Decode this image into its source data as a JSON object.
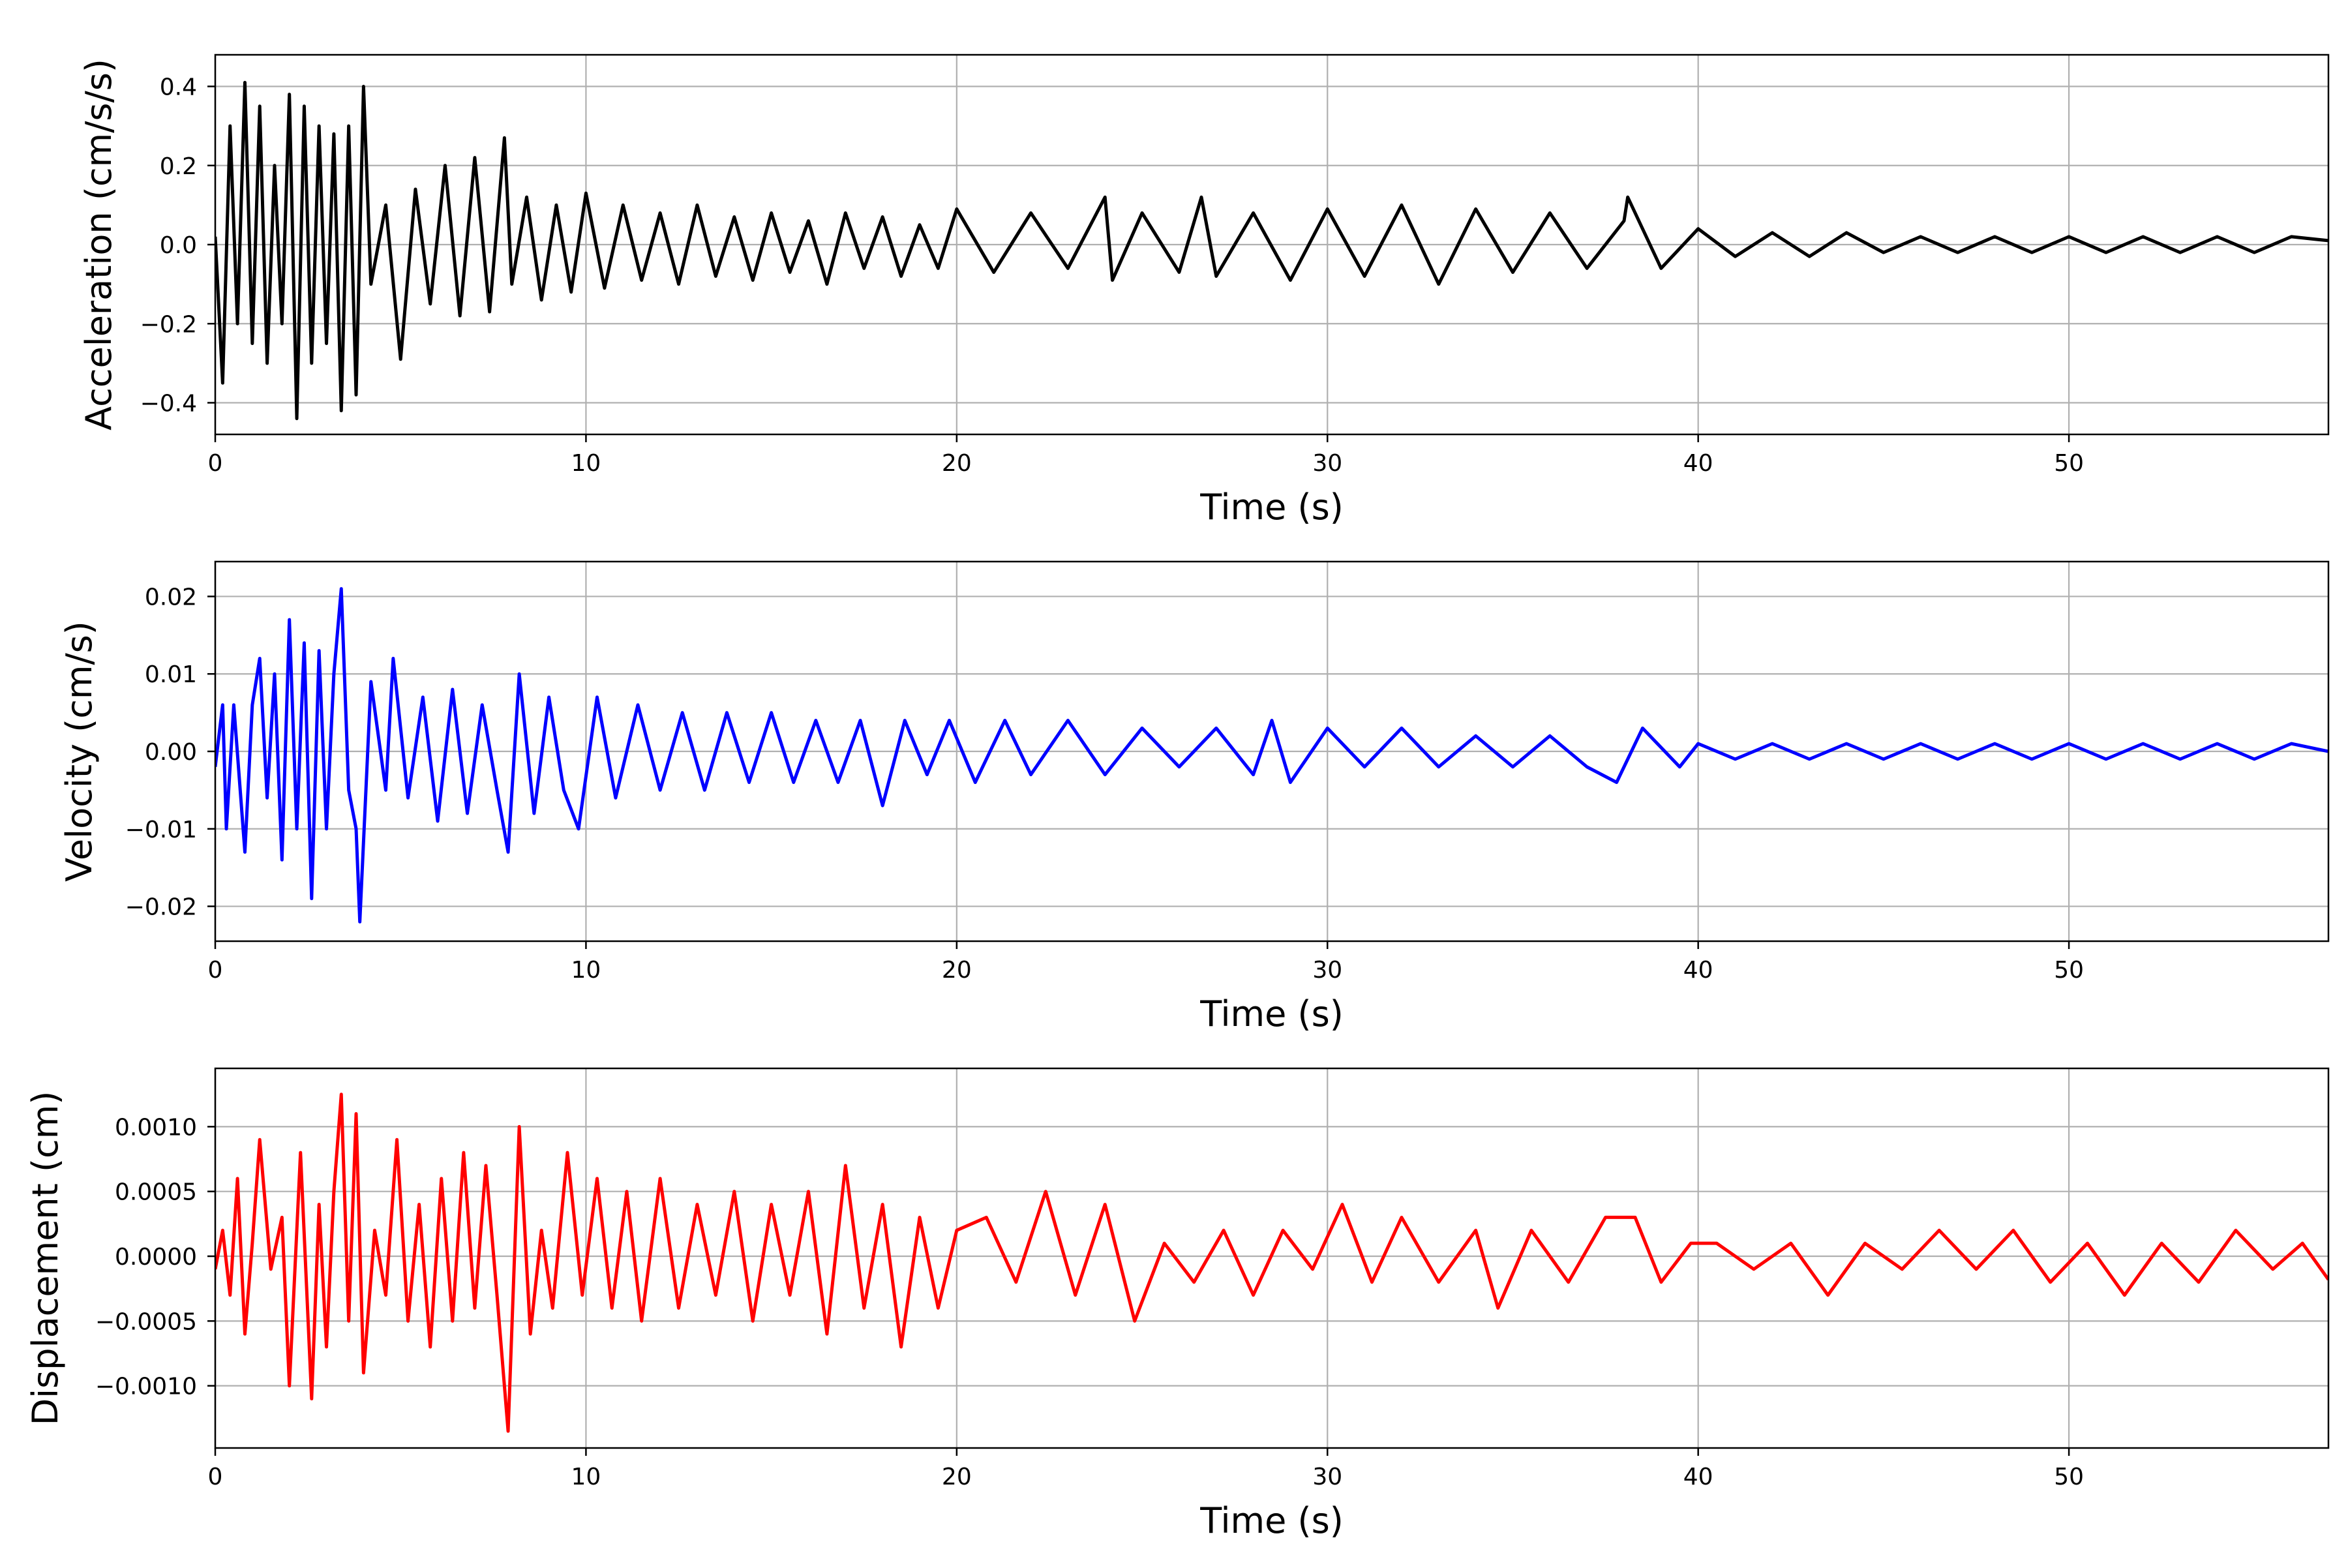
{
  "figure": {
    "background": "#ffffff",
    "grid_color": "#b0b0b0"
  },
  "chart_data": [
    {
      "type": "line",
      "title": "",
      "xlabel": "Time (s)",
      "ylabel": "Acceleration (cm/s/s)",
      "xlim": [
        0,
        57
      ],
      "ylim": [
        -0.48,
        0.48
      ],
      "xticks": [
        0,
        10,
        20,
        30,
        40,
        50
      ],
      "xtick_labels": [
        "0",
        "10",
        "20",
        "30",
        "40",
        "50"
      ],
      "yticks": [
        -0.4,
        -0.2,
        0.0,
        0.2,
        0.4
      ],
      "ytick_labels": [
        "−0.4",
        "−0.2",
        "0.0",
        "0.2",
        "0.4"
      ],
      "grid": true,
      "series": [
        {
          "color": "#000000",
          "x": [
            0,
            0.2,
            0.4,
            0.6,
            0.8,
            1.0,
            1.2,
            1.4,
            1.6,
            1.8,
            2.0,
            2.2,
            2.4,
            2.6,
            2.8,
            3.0,
            3.2,
            3.4,
            3.6,
            3.8,
            4.0,
            4.2,
            4.6,
            5.0,
            5.4,
            5.8,
            6.2,
            6.6,
            7.0,
            7.4,
            7.8,
            8.0,
            8.4,
            8.8,
            9.2,
            9.6,
            10.0,
            10.5,
            11.0,
            11.5,
            12.0,
            12.5,
            13.0,
            13.5,
            14.0,
            14.5,
            15.0,
            15.5,
            16.0,
            16.5,
            17.0,
            17.5,
            18.0,
            18.5,
            19.0,
            19.5,
            20.0,
            21.0,
            22.0,
            23.0,
            24.0,
            24.2,
            25.0,
            26.0,
            26.6,
            27.0,
            28.0,
            29.0,
            30.0,
            31.0,
            32.0,
            33.0,
            34.0,
            35.0,
            36.0,
            37.0,
            38.0,
            38.1,
            39.0,
            40.0,
            41.0,
            42.0,
            43.0,
            44.0,
            45.0,
            46.0,
            47.0,
            48.0,
            49.0,
            50.0,
            51.0,
            52.0,
            53.0,
            54.0,
            55.0,
            56.0,
            57.0
          ],
          "y": [
            0.02,
            -0.35,
            0.3,
            -0.2,
            0.41,
            -0.25,
            0.35,
            -0.3,
            0.2,
            -0.2,
            0.38,
            -0.44,
            0.35,
            -0.3,
            0.3,
            -0.25,
            0.28,
            -0.42,
            0.3,
            -0.38,
            0.4,
            -0.1,
            0.1,
            -0.29,
            0.14,
            -0.15,
            0.2,
            -0.18,
            0.22,
            -0.17,
            0.27,
            -0.1,
            0.12,
            -0.14,
            0.1,
            -0.12,
            0.13,
            -0.11,
            0.1,
            -0.09,
            0.08,
            -0.1,
            0.1,
            -0.08,
            0.07,
            -0.09,
            0.08,
            -0.07,
            0.06,
            -0.1,
            0.08,
            -0.06,
            0.07,
            -0.08,
            0.05,
            -0.06,
            0.09,
            -0.07,
            0.08,
            -0.06,
            0.12,
            -0.09,
            0.08,
            -0.07,
            0.12,
            -0.08,
            0.08,
            -0.09,
            0.09,
            -0.08,
            0.1,
            -0.1,
            0.09,
            -0.07,
            0.08,
            -0.06,
            0.06,
            0.12,
            -0.06,
            0.04,
            -0.03,
            0.03,
            -0.03,
            0.03,
            -0.02,
            0.02,
            -0.02,
            0.02,
            -0.02,
            0.02,
            -0.02,
            0.02,
            -0.02,
            0.02,
            -0.02,
            0.02,
            0.01
          ]
        }
      ]
    },
    {
      "type": "line",
      "title": "",
      "xlabel": "Time (s)",
      "ylabel": "Velocity (cm/s)",
      "xlim": [
        0,
        57
      ],
      "ylim": [
        -0.0245,
        0.0245
      ],
      "xticks": [
        0,
        10,
        20,
        30,
        40,
        50
      ],
      "xtick_labels": [
        "0",
        "10",
        "20",
        "30",
        "40",
        "50"
      ],
      "yticks": [
        -0.02,
        -0.01,
        0.0,
        0.01,
        0.02
      ],
      "ytick_labels": [
        "−0.02",
        "−0.01",
        "0.00",
        "0.01",
        "0.02"
      ],
      "grid": true,
      "series": [
        {
          "color": "#0000ff",
          "x": [
            0,
            0.2,
            0.3,
            0.5,
            0.8,
            1.0,
            1.2,
            1.4,
            1.6,
            1.8,
            2.0,
            2.2,
            2.4,
            2.6,
            2.8,
            3.0,
            3.2,
            3.4,
            3.6,
            3.8,
            3.9,
            4.2,
            4.6,
            4.8,
            5.2,
            5.6,
            6.0,
            6.4,
            6.8,
            7.2,
            7.6,
            7.9,
            8.2,
            8.6,
            9.0,
            9.4,
            9.8,
            10.3,
            10.8,
            11.4,
            12.0,
            12.6,
            13.2,
            13.8,
            14.4,
            15.0,
            15.6,
            16.2,
            16.8,
            17.4,
            18.0,
            18.6,
            19.2,
            19.8,
            20.5,
            21.3,
            22.0,
            23.0,
            24.0,
            25.0,
            26.0,
            27.0,
            28.0,
            28.5,
            29.0,
            30.0,
            31.0,
            32.0,
            33.0,
            34.0,
            35.0,
            36.0,
            37.0,
            37.8,
            38.5,
            39.5,
            40.0,
            41.0,
            42.0,
            43.0,
            44.0,
            45.0,
            46.0,
            47.0,
            48.0,
            49.0,
            50.0,
            51.0,
            52.0,
            53.0,
            54.0,
            55.0,
            56.0,
            57.0
          ],
          "y": [
            -0.002,
            0.006,
            -0.01,
            0.006,
            -0.013,
            0.006,
            0.012,
            -0.006,
            0.01,
            -0.014,
            0.017,
            -0.01,
            0.014,
            -0.019,
            0.013,
            -0.01,
            0.01,
            0.021,
            -0.005,
            -0.01,
            -0.022,
            0.009,
            -0.005,
            0.012,
            -0.006,
            0.007,
            -0.009,
            0.008,
            -0.008,
            0.006,
            -0.005,
            -0.013,
            0.01,
            -0.008,
            0.007,
            -0.005,
            -0.01,
            0.007,
            -0.006,
            0.006,
            -0.005,
            0.005,
            -0.005,
            0.005,
            -0.004,
            0.005,
            -0.004,
            0.004,
            -0.004,
            0.004,
            -0.007,
            0.004,
            -0.003,
            0.004,
            -0.004,
            0.004,
            -0.003,
            0.004,
            -0.003,
            0.003,
            -0.002,
            0.003,
            -0.003,
            0.004,
            -0.004,
            0.003,
            -0.002,
            0.003,
            -0.002,
            0.002,
            -0.002,
            0.002,
            -0.002,
            -0.004,
            0.003,
            -0.002,
            0.001,
            -0.001,
            0.001,
            -0.001,
            0.001,
            -0.001,
            0.001,
            -0.001,
            0.001,
            -0.001,
            0.001,
            -0.001,
            0.001,
            -0.001,
            0.001,
            -0.001,
            0.001,
            0.0
          ]
        }
      ]
    },
    {
      "type": "line",
      "title": "",
      "xlabel": "Time (s)",
      "ylabel": "Displacement (cm)",
      "xlim": [
        0,
        57
      ],
      "ylim": [
        -0.00148,
        0.00145
      ],
      "xticks": [
        0,
        10,
        20,
        30,
        40,
        50
      ],
      "xtick_labels": [
        "0",
        "10",
        "20",
        "30",
        "40",
        "50"
      ],
      "yticks": [
        -0.001,
        -0.0005,
        0.0,
        0.0005,
        0.001
      ],
      "ytick_labels": [
        "−0.0010",
        "−0.0005",
        "0.0000",
        "0.0005",
        "0.0010"
      ],
      "grid": true,
      "series": [
        {
          "color": "#ff0000",
          "x": [
            0,
            0.2,
            0.4,
            0.6,
            0.8,
            1.0,
            1.2,
            1.5,
            1.8,
            2.0,
            2.3,
            2.6,
            2.8,
            3.0,
            3.2,
            3.4,
            3.6,
            3.8,
            4.0,
            4.3,
            4.6,
            4.9,
            5.2,
            5.5,
            5.8,
            6.1,
            6.4,
            6.7,
            7.0,
            7.3,
            7.6,
            7.9,
            8.2,
            8.5,
            8.8,
            9.1,
            9.5,
            9.9,
            10.3,
            10.7,
            11.1,
            11.5,
            12.0,
            12.5,
            13.0,
            13.5,
            14.0,
            14.5,
            15.0,
            15.5,
            16.0,
            16.5,
            17.0,
            17.5,
            18.0,
            18.5,
            19.0,
            19.5,
            20.0,
            20.8,
            21.6,
            22.4,
            23.2,
            24.0,
            24.8,
            25.6,
            26.4,
            27.2,
            28.0,
            28.8,
            29.6,
            30.4,
            31.2,
            32.0,
            33.0,
            34.0,
            34.6,
            35.5,
            36.5,
            37.5,
            38.3,
            39.0,
            39.8,
            40.5,
            41.5,
            42.5,
            43.5,
            44.5,
            45.5,
            46.5,
            47.5,
            48.5,
            49.5,
            50.5,
            51.5,
            52.5,
            53.5,
            54.5,
            55.5,
            56.3,
            57.0
          ],
          "y": [
            -0.0001,
            0.0002,
            -0.0003,
            0.0006,
            -0.0006,
            0.0001,
            0.0009,
            -0.0001,
            0.0003,
            -0.001,
            0.0008,
            -0.0011,
            0.0004,
            -0.0007,
            0.0005,
            0.00125,
            -0.0005,
            0.0011,
            -0.0009,
            0.0002,
            -0.0003,
            0.0009,
            -0.0005,
            0.0004,
            -0.0007,
            0.0006,
            -0.0005,
            0.0008,
            -0.0004,
            0.0007,
            -0.0003,
            -0.00135,
            0.001,
            -0.0006,
            0.0002,
            -0.0004,
            0.0008,
            -0.0003,
            0.0006,
            -0.0004,
            0.0005,
            -0.0005,
            0.0006,
            -0.0004,
            0.0004,
            -0.0003,
            0.0005,
            -0.0005,
            0.0004,
            -0.0003,
            0.0005,
            -0.0006,
            0.0007,
            -0.0004,
            0.0004,
            -0.0007,
            0.0003,
            -0.0004,
            0.0002,
            0.0003,
            -0.0002,
            0.0005,
            -0.0003,
            0.0004,
            -0.0005,
            0.0001,
            -0.0002,
            0.0002,
            -0.0003,
            0.0002,
            -0.0001,
            0.0004,
            -0.0002,
            0.0003,
            -0.0002,
            0.0002,
            -0.0004,
            0.0002,
            -0.0002,
            0.0003,
            0.0003,
            -0.0002,
            0.0001,
            0.0001,
            -0.0001,
            0.0001,
            -0.0003,
            0.0001,
            -0.0001,
            0.0002,
            -0.0001,
            0.0002,
            -0.0002,
            0.0001,
            -0.0003,
            0.0001,
            -0.0002,
            0.0002,
            -0.0001,
            0.0001,
            -0.00018
          ]
        }
      ]
    }
  ]
}
